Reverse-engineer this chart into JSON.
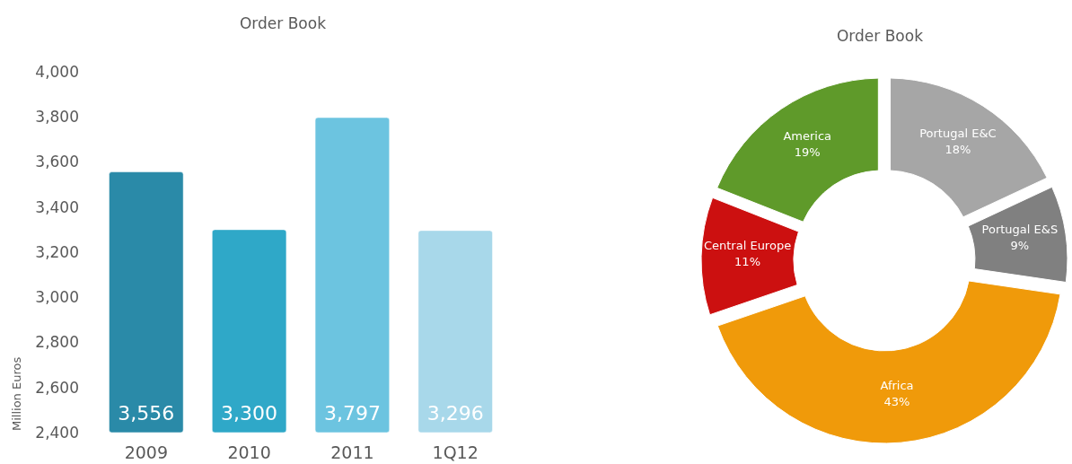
{
  "chart_data": [
    {
      "type": "bar",
      "title": "Order Book",
      "ylabel": "Million Euros",
      "categories": [
        "2009",
        "2010",
        "2011",
        "1Q12"
      ],
      "values": [
        3556,
        3300,
        3797,
        3296
      ],
      "colors": [
        "#2a8aa8",
        "#2fa8c8",
        "#6cc4e0",
        "#a8d8ea"
      ],
      "ylim": [
        2400,
        4000
      ],
      "yticks": [
        {
          "value": 2400,
          "label": "2,400"
        },
        {
          "value": 2600,
          "label": "2,600"
        },
        {
          "value": 2800,
          "label": "2,800"
        },
        {
          "value": 3000,
          "label": "3,000"
        },
        {
          "value": 3200,
          "label": "3,200"
        },
        {
          "value": 3400,
          "label": "3,400"
        },
        {
          "value": 3600,
          "label": "3,600"
        },
        {
          "value": 3800,
          "label": "3,800"
        },
        {
          "value": 4000,
          "label": "4,000"
        }
      ],
      "value_labels": [
        "3,556",
        "3,300",
        "3,797",
        "3,296"
      ],
      "grid": false
    },
    {
      "type": "donut",
      "title": "Order Book",
      "categories": [
        "Portugal E&C",
        "Portugal E&S",
        "Africa",
        "Central Europe",
        "America"
      ],
      "values": [
        18,
        9,
        43,
        11,
        19
      ],
      "colors": [
        "#a6a6a6",
        "#808080",
        "#f09a0a",
        "#cc1010",
        "#5f9a2a"
      ],
      "value_labels": [
        "18%",
        "9%",
        "43%",
        "11%",
        "19%"
      ]
    }
  ]
}
